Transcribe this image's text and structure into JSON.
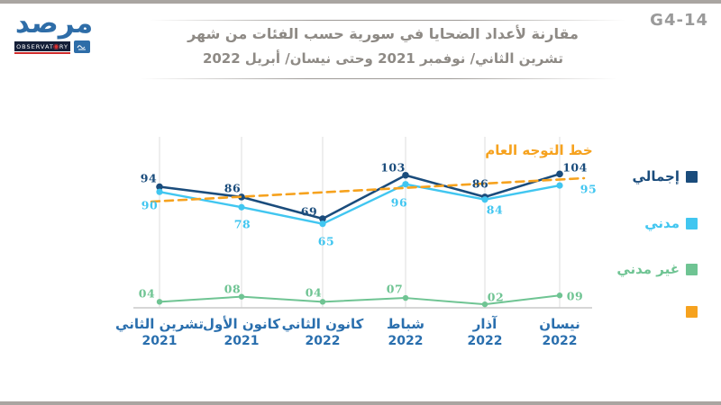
{
  "page": {
    "code": "G4-14"
  },
  "logo": {
    "name_ar": "مرصد",
    "name_en_left": "OBSERVAT",
    "name_en_right": "RY"
  },
  "title": {
    "line1": "مقارنة لأعداد الضحايا في سورية حسب الفئات من شهر",
    "line2": "تشرين الثاني/ نوفمبر 2021 وحتى  نيسان/ أبريل 2022"
  },
  "legend": [
    {
      "label": "إجمالي",
      "color": "#1a4c7c"
    },
    {
      "label": "مدني",
      "color": "#41c6f0"
    },
    {
      "label": "غير مدني",
      "color": "#6fc493"
    },
    {
      "label": "",
      "color": "#f6a21e"
    }
  ],
  "chart_data": {
    "type": "line",
    "title": "مقارنة لأعداد الضحايا في سورية حسب الفئات من شهر تشرين الثاني/ نوفمبر 2021 وحتى نيسان/ أبريل 2022",
    "categories_ar": [
      "تشرين الثاني",
      "كانون الأول",
      "كانون الثاني",
      "شباط",
      "آذار",
      "نيسان"
    ],
    "category_years": [
      "2021",
      "2021",
      "2022",
      "2022",
      "2022",
      "2022"
    ],
    "series": [
      {
        "name": "إجمالي",
        "color": "#1a4c7c",
        "values": [
          94,
          86,
          69,
          103,
          86,
          104
        ],
        "labels": [
          "94",
          "86",
          "69",
          "103",
          "86",
          "104"
        ]
      },
      {
        "name": "مدني",
        "color": "#41c6f0",
        "values": [
          90,
          78,
          65,
          96,
          84,
          95
        ],
        "labels": [
          "90",
          "78",
          "65",
          "96",
          "84",
          "95"
        ]
      },
      {
        "name": "غير مدني",
        "color": "#6fc493",
        "values": [
          4,
          8,
          4,
          7,
          2,
          9
        ],
        "labels": [
          "04",
          "08",
          "04",
          "07",
          "02",
          "09"
        ]
      }
    ],
    "trendline": {
      "label": "خط التوجه العام",
      "color": "#f6a21e",
      "style": "dashed",
      "from": 84.3,
      "to": 96.3
    },
    "ylim": [
      0,
      120
    ],
    "grid": "vertical-only",
    "legend_position": "right",
    "gridline_color": "#dcdcdc",
    "axis_color": "#c9c9c9"
  }
}
